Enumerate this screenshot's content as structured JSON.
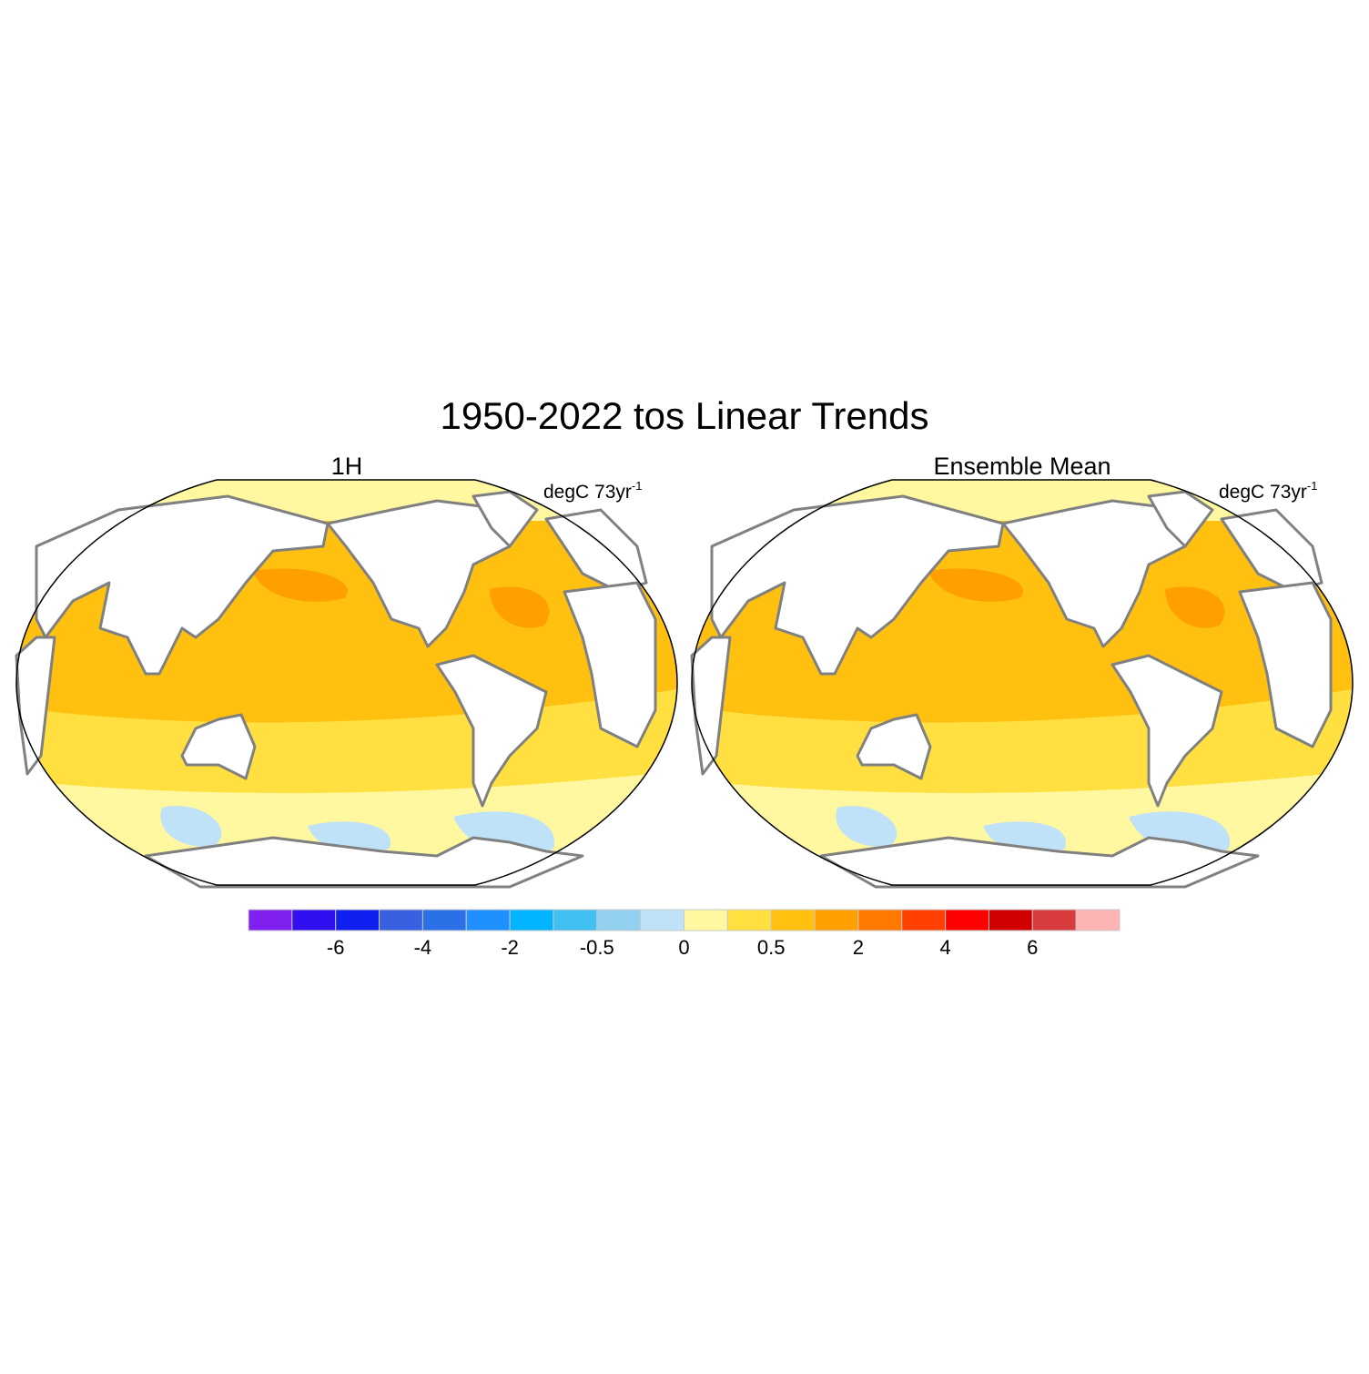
{
  "title": "1950-2022 tos Linear Trends",
  "panels": [
    {
      "title": "1H",
      "units": {
        "text": "degC 73yr",
        "superscript": "-1"
      }
    },
    {
      "title": "Ensemble Mean",
      "units": {
        "text": "degC 73yr",
        "superscript": "-1"
      }
    }
  ],
  "colorbar": {
    "colors": [
      "#8020f0",
      "#3010f0",
      "#1020f0",
      "#3860e0",
      "#2c70e8",
      "#1e90ff",
      "#00b4ff",
      "#40c0f0",
      "#94d0f0",
      "#c0e2f8",
      "#fff8a0",
      "#ffe040",
      "#ffc010",
      "#ffa000",
      "#ff7800",
      "#ff4000",
      "#ff0000",
      "#d00000",
      "#d83c3c",
      "#ffb4b4"
    ],
    "ticks": [
      -6,
      -4,
      -2,
      -0.5,
      0,
      0.5,
      2,
      4,
      6
    ]
  }
}
